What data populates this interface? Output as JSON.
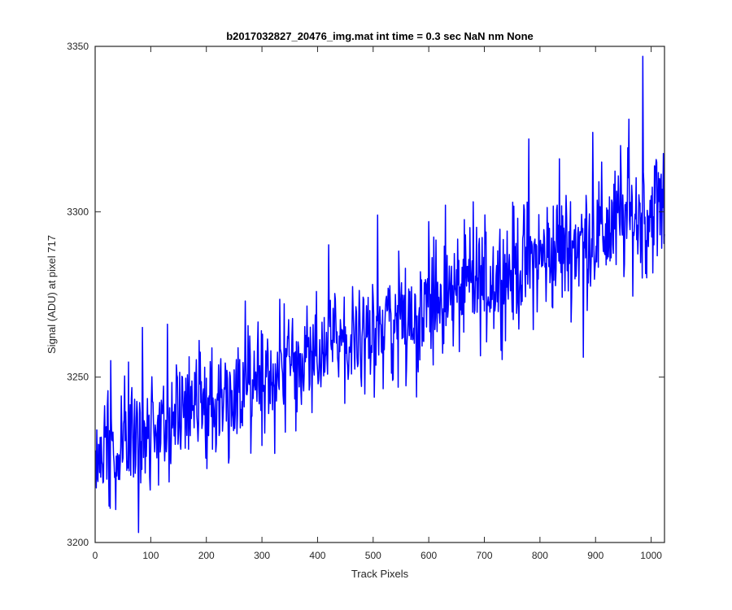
{
  "chart_data": {
    "type": "line",
    "title": "b2017032827_20476_img.mat int time = 0.3 sec  NaN nm None",
    "xlabel": "Track Pixels",
    "ylabel": "Signal (ADU) at pixel 717",
    "xlim": [
      0,
      1024
    ],
    "ylim": [
      3200,
      3350
    ],
    "xticks": [
      0,
      100,
      200,
      300,
      400,
      500,
      600,
      700,
      800,
      900,
      1000
    ],
    "yticks": [
      3200,
      3250,
      3300,
      3350
    ],
    "grid": false,
    "series": [
      {
        "color": "#0000ff",
        "trend": {
          "x": [
            0,
            1024
          ],
          "y": [
            3228,
            3302
          ]
        },
        "noise_amplitude": 9,
        "x_start": 1,
        "x_end": 1024,
        "notable_points": [
          {
            "x": 14,
            "y": 3218
          },
          {
            "x": 20,
            "y": 3235
          },
          {
            "x": 25,
            "y": 3211
          },
          {
            "x": 28,
            "y": 3255
          },
          {
            "x": 78,
            "y": 3203
          },
          {
            "x": 85,
            "y": 3265
          },
          {
            "x": 90,
            "y": 3221
          },
          {
            "x": 130,
            "y": 3266
          },
          {
            "x": 240,
            "y": 3224
          },
          {
            "x": 270,
            "y": 3273
          },
          {
            "x": 280,
            "y": 3227
          },
          {
            "x": 420,
            "y": 3290
          },
          {
            "x": 508,
            "y": 3299
          },
          {
            "x": 535,
            "y": 3249
          },
          {
            "x": 540,
            "y": 3275
          },
          {
            "x": 578,
            "y": 3244
          },
          {
            "x": 600,
            "y": 3297
          },
          {
            "x": 630,
            "y": 3302
          },
          {
            "x": 680,
            "y": 3303
          },
          {
            "x": 700,
            "y": 3270
          },
          {
            "x": 780,
            "y": 3322
          },
          {
            "x": 835,
            "y": 3316
          },
          {
            "x": 878,
            "y": 3256
          },
          {
            "x": 895,
            "y": 3324
          },
          {
            "x": 945,
            "y": 3320
          },
          {
            "x": 960,
            "y": 3328
          },
          {
            "x": 985,
            "y": 3347
          },
          {
            "x": 992,
            "y": 3280
          },
          {
            "x": 1010,
            "y": 3315
          }
        ]
      }
    ]
  }
}
